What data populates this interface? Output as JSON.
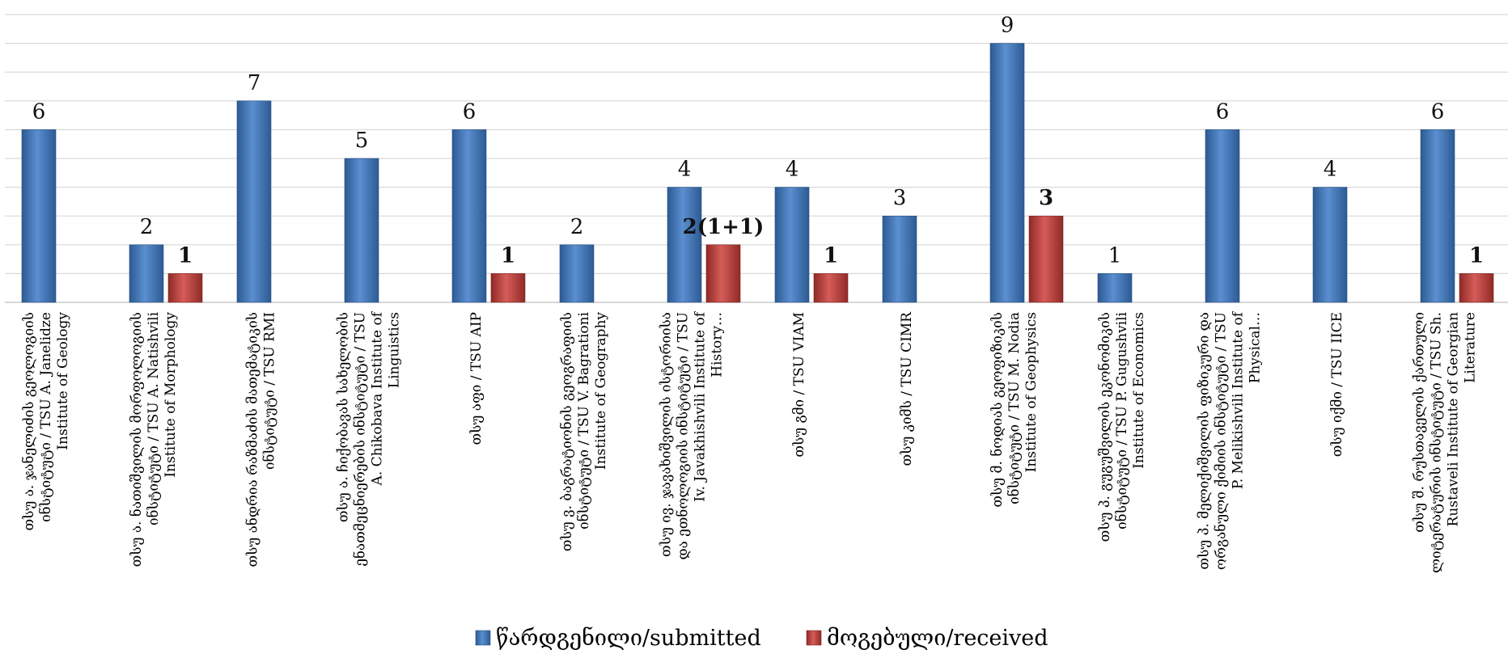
{
  "chart_data": {
    "type": "bar",
    "categories": [
      "თსუ ა. ჯანელიძის გეოლოგიის ინსტიტუტი / TSU A. Janelidze Institute of Geology",
      "თსუ ა. ნათიშვილის მორფოლოგიის ინსტიტუტი / TSU A. Natishvili Institute of Morphology",
      "თსუ ანდრია რაზმაძის მათემატიკის ინსტიტუტი / TSU RMI",
      "თსუ ა. ჩიქობავას სახელობის ენათმეცნიერების ინსტიტუტი / TSU A. Chikobava Institute of Linguistics",
      "თსუ აფი / TSU AIP",
      "თსუ ვ. ბაგრატიონის გეოგრაფიის ინსტიტუტი / TSU V. Bagrationi Institute of Geography",
      "თსუ ივ. ჯავახიშვილის ისტორიისა და ეთნოლოგიის ინსტიტუტი / TSU Iv. Javakhishvili Institute of History…",
      "თსუ გმი / TSU VIAM",
      "თსუ კიმს / TSU CIMR",
      "თსუ მ. ნოდიას გეოფიზიკის ინსტიტუტი / TSU M. Nodia Institute of Geophysics",
      "თსუ პ. გუგუშვილის ეკონომიკის ინსტიტუტი / TSU P. Gugushvili Institute of Economics",
      "თსუ პ. მელიქიშვილის ფიზიკური და ორგანული ქიმიის ინსტიტუტი / TSU P. Melikishvili Institute of Physical…",
      "თსუ იქმი / TSU IICE",
      "თსუ შ. რუსთაველის ქართული ლიტერატურის ინსტიტუტი / TSU Sh. Rustaveli Institute of Georgian Literature"
    ],
    "series": [
      {
        "name": "წარდგენილი/submitted",
        "color": "#4f81bd",
        "values": [
          6,
          2,
          7,
          5,
          6,
          2,
          4,
          4,
          3,
          9,
          1,
          6,
          4,
          6
        ],
        "labels": [
          "6",
          "2",
          "7",
          "5",
          "6",
          "2",
          "4",
          "4",
          "3",
          "9",
          "1",
          "6",
          "4",
          "6"
        ]
      },
      {
        "name": "მოგებული/received",
        "color": "#c0504d",
        "values": [
          null,
          1,
          null,
          null,
          1,
          null,
          2,
          1,
          null,
          3,
          null,
          null,
          null,
          1
        ],
        "labels": [
          "",
          "1",
          "",
          "",
          "1",
          "",
          "2(1+1)",
          "1",
          "",
          "3",
          "",
          "",
          "",
          "1"
        ]
      }
    ],
    "ylim": [
      0,
      10
    ],
    "grid": true,
    "legend": "bottom"
  }
}
